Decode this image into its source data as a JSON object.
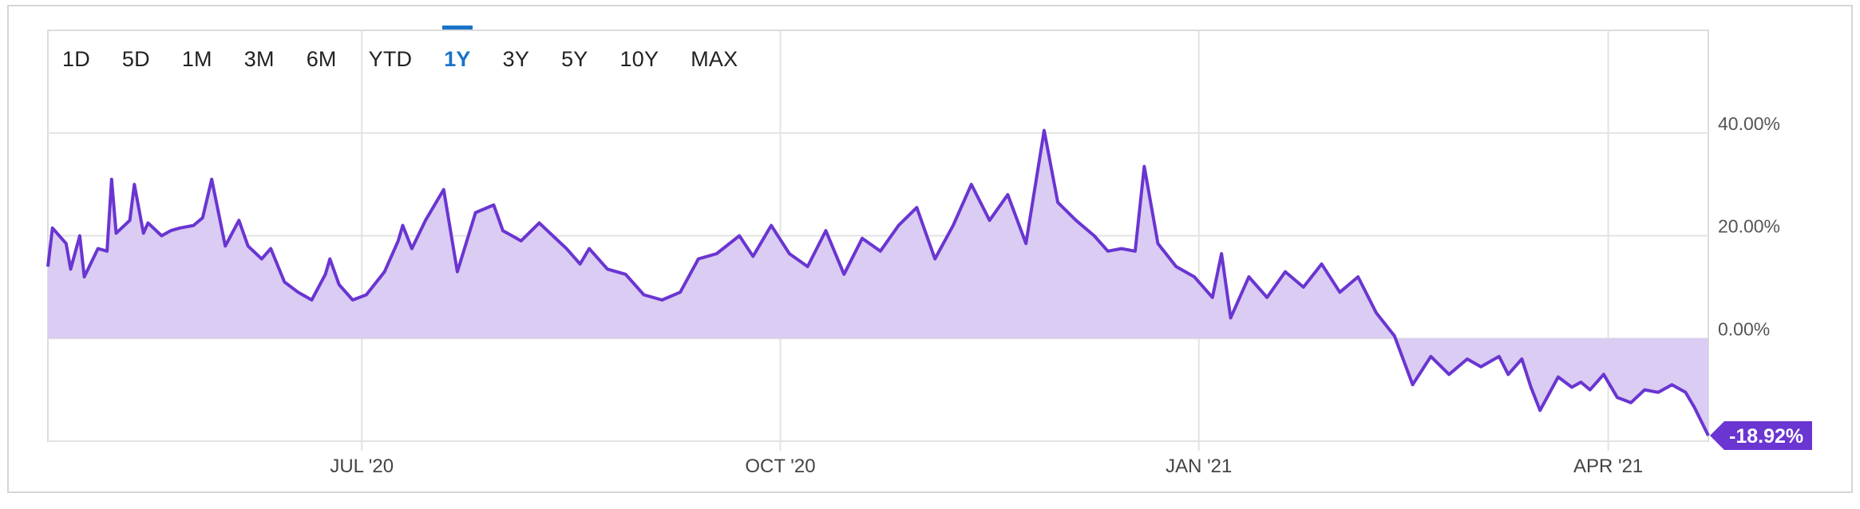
{
  "range_buttons": [
    {
      "label": "1D",
      "active": false
    },
    {
      "label": "5D",
      "active": false
    },
    {
      "label": "1M",
      "active": false
    },
    {
      "label": "3M",
      "active": false
    },
    {
      "label": "6M",
      "active": false
    },
    {
      "label": "YTD",
      "active": false
    },
    {
      "label": "1Y",
      "active": true
    },
    {
      "label": "3Y",
      "active": false
    },
    {
      "label": "5Y",
      "active": false
    },
    {
      "label": "10Y",
      "active": false
    },
    {
      "label": "MAX",
      "active": false
    }
  ],
  "colors": {
    "line": "#6a35d1",
    "fill": "#d8c9f1",
    "badge": "#6a35d1",
    "active_range": "#1a73c8",
    "grid": "#e3e3e3"
  },
  "chart_data": {
    "type": "area",
    "title": "",
    "xlabel": "",
    "ylabel": "",
    "grid": true,
    "x_ticks": [
      "JUL '20",
      "OCT '20",
      "JAN '21",
      "APR '21"
    ],
    "x_tick_dates": [
      "2020-07-01",
      "2020-10-01",
      "2021-01-01",
      "2021-04-01"
    ],
    "x_range": [
      "2020-04-23",
      "2021-04-23"
    ],
    "y_ticks": [
      "40.00%",
      "20.00%",
      "0.00%"
    ],
    "y_tick_values": [
      40,
      20,
      0
    ],
    "ylim": [
      -20,
      60
    ],
    "y_axis_position": "right",
    "last_value_label": "-18.92%",
    "series": [
      {
        "x": [
          "2020-04-23",
          "2020-04-24",
          "2020-04-27",
          "2020-04-28",
          "2020-04-30",
          "2020-05-01",
          "2020-05-04",
          "2020-05-06",
          "2020-05-07",
          "2020-05-08",
          "2020-05-11",
          "2020-05-12",
          "2020-05-14",
          "2020-05-15",
          "2020-05-18",
          "2020-05-20",
          "2020-05-22",
          "2020-05-25",
          "2020-05-27",
          "2020-05-29",
          "2020-06-01",
          "2020-06-04",
          "2020-06-06",
          "2020-06-09",
          "2020-06-11",
          "2020-06-14",
          "2020-06-17",
          "2020-06-20",
          "2020-06-23",
          "2020-06-24",
          "2020-06-26",
          "2020-06-29",
          "2020-07-02",
          "2020-07-06",
          "2020-07-09",
          "2020-07-10",
          "2020-07-12",
          "2020-07-15",
          "2020-07-19",
          "2020-07-22",
          "2020-07-26",
          "2020-07-30",
          "2020-08-01",
          "2020-08-05",
          "2020-08-09",
          "2020-08-12",
          "2020-08-15",
          "2020-08-18",
          "2020-08-20",
          "2020-08-24",
          "2020-08-28",
          "2020-09-01",
          "2020-09-05",
          "2020-09-09",
          "2020-09-13",
          "2020-09-17",
          "2020-09-22",
          "2020-09-25",
          "2020-09-29",
          "2020-10-03",
          "2020-10-07",
          "2020-10-11",
          "2020-10-15",
          "2020-10-19",
          "2020-10-23",
          "2020-10-27",
          "2020-10-31",
          "2020-11-04",
          "2020-11-08",
          "2020-11-12",
          "2020-11-16",
          "2020-11-20",
          "2020-11-24",
          "2020-11-28",
          "2020-12-01",
          "2020-12-05",
          "2020-12-09",
          "2020-12-12",
          "2020-12-15",
          "2020-12-18",
          "2020-12-20",
          "2020-12-23",
          "2020-12-27",
          "2020-12-31",
          "2021-01-04",
          "2021-01-06",
          "2021-01-08",
          "2021-01-12",
          "2021-01-16",
          "2021-01-20",
          "2021-01-24",
          "2021-01-28",
          "2021-02-01",
          "2021-02-05",
          "2021-02-09",
          "2021-02-13",
          "2021-02-17",
          "2021-02-21",
          "2021-02-25",
          "2021-03-01",
          "2021-03-04",
          "2021-03-08",
          "2021-03-10",
          "2021-03-13",
          "2021-03-15",
          "2021-03-17",
          "2021-03-21",
          "2021-03-24",
          "2021-03-26",
          "2021-03-28",
          "2021-03-31",
          "2021-04-03",
          "2021-04-06",
          "2021-04-09",
          "2021-04-12",
          "2021-04-15",
          "2021-04-18",
          "2021-04-20",
          "2021-04-23"
        ],
        "y": [
          14.0,
          21.5,
          18.5,
          13.5,
          20.0,
          12.0,
          17.5,
          17.0,
          31.0,
          20.5,
          23.0,
          30.0,
          20.5,
          22.5,
          20.0,
          21.0,
          21.5,
          22.0,
          23.5,
          31.0,
          18.0,
          23.0,
          18.0,
          15.5,
          17.5,
          11.0,
          9.0,
          7.5,
          12.5,
          15.5,
          10.5,
          7.5,
          8.5,
          13.0,
          19.0,
          22.0,
          17.5,
          23.0,
          29.0,
          13.0,
          24.5,
          26.0,
          21.0,
          19.0,
          22.5,
          20.0,
          17.5,
          14.5,
          17.5,
          13.5,
          12.5,
          8.5,
          7.5,
          9.0,
          15.5,
          16.5,
          20.0,
          16.0,
          22.0,
          16.5,
          14.0,
          21.0,
          12.5,
          19.5,
          17.0,
          22.0,
          25.5,
          15.5,
          22.0,
          30.0,
          23.0,
          28.0,
          18.5,
          40.5,
          26.5,
          23.0,
          20.0,
          17.0,
          17.5,
          17.0,
          33.5,
          18.5,
          14.0,
          12.0,
          8.0,
          16.5,
          4.0,
          12.0,
          8.0,
          13.0,
          10.0,
          14.5,
          9.0,
          12.0,
          5.0,
          0.5,
          -9.0,
          -3.5,
          -7.0,
          -4.0,
          -5.5,
          -3.5,
          -7.0,
          -4.0,
          -9.5,
          -14.0,
          -7.5,
          -9.5,
          -8.5,
          -10.0,
          -7.0,
          -11.5,
          -12.5,
          -10.0,
          -10.5,
          -9.0,
          -10.5,
          -13.5,
          -18.92
        ]
      }
    ]
  }
}
